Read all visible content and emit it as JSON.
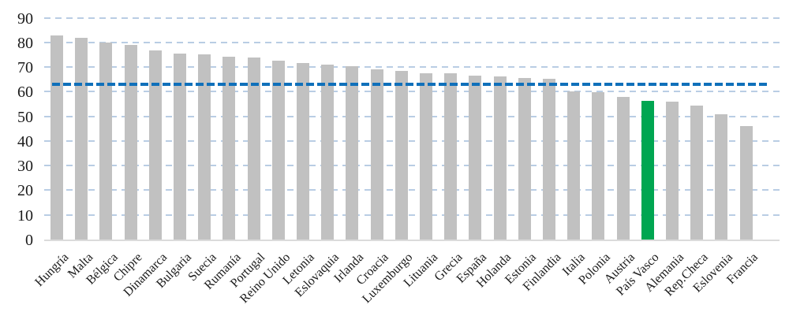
{
  "chart_data": {
    "type": "bar",
    "title": "",
    "categories": [
      "Hungría",
      "Malta",
      "Bélgica",
      "Chipre",
      "Dinamarca",
      "Bulgaria",
      "Suecia",
      "Rumanía",
      "Portugal",
      "Reino Unido",
      "Letonia",
      "Eslovaquia",
      "Irlanda",
      "Croacia",
      "Luxemburgo",
      "Lituania",
      "Grecia",
      "España",
      "Holanda",
      "Estonia",
      "Finlandia",
      "Italia",
      "Polonia",
      "Austria",
      "País Vasco",
      "Alemania",
      "Rep.Checa",
      "Eslovenia",
      "Francia"
    ],
    "values": [
      82.8,
      81.9,
      80.1,
      78.9,
      76.6,
      75.5,
      75.1,
      74.3,
      74.0,
      72.5,
      71.5,
      71.0,
      70.4,
      69.1,
      68.3,
      67.6,
      67.4,
      66.4,
      66.1,
      65.5,
      65.3,
      60.2,
      59.9,
      57.9,
      56.4,
      55.9,
      54.5,
      50.8,
      46.1
    ],
    "highlight": {
      "category": "País Vasco",
      "color": "#00A651"
    },
    "reference_line": {
      "value": 63,
      "color": "#1070BA",
      "style": "dashed"
    },
    "y_axis": {
      "min": 0,
      "max": 90,
      "step": 10,
      "tick_labels": [
        "0",
        "10",
        "20",
        "30",
        "40",
        "50",
        "60",
        "70",
        "80",
        "90"
      ]
    },
    "x_axis": {
      "tick_rotation_deg": 45
    },
    "grid": "horizontal-dashed",
    "legend": "none",
    "colors": {
      "bar": "#C1C1C1",
      "gridline": "#B9CDE4",
      "axis_line": "#DBDBDB",
      "text": "#1A1A1A",
      "background": "#FFFFFF"
    }
  }
}
